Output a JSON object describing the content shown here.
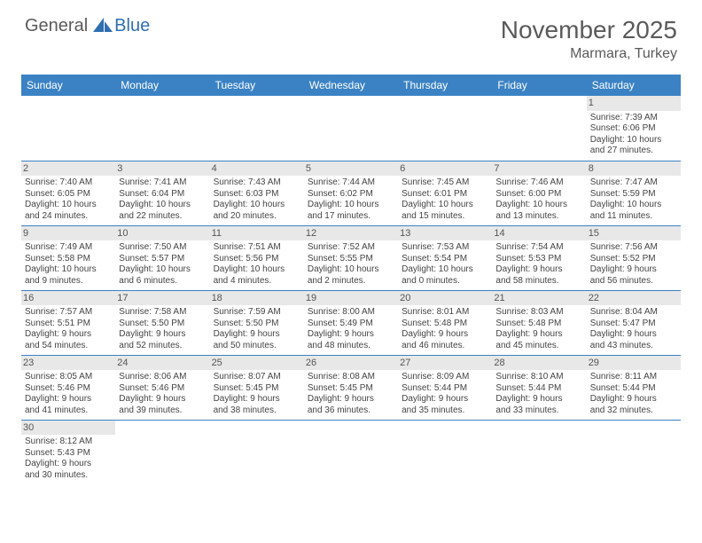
{
  "logo": {
    "general": "General",
    "blue": "Blue"
  },
  "title": "November 2025",
  "location": "Marmara, Turkey",
  "colors": {
    "header_bg": "#3b82c4",
    "header_text": "#ffffff",
    "daynum_bg": "#e8e8e8",
    "border": "#3b82c4",
    "text": "#444444",
    "title_text": "#5a5a5a",
    "logo_blue": "#2f6fb0"
  },
  "weekdays": [
    "Sunday",
    "Monday",
    "Tuesday",
    "Wednesday",
    "Thursday",
    "Friday",
    "Saturday"
  ],
  "weeks": [
    [
      null,
      null,
      null,
      null,
      null,
      null,
      {
        "n": "1",
        "sr": "Sunrise: 7:39 AM",
        "ss": "Sunset: 6:06 PM",
        "d1": "Daylight: 10 hours",
        "d2": "and 27 minutes."
      }
    ],
    [
      {
        "n": "2",
        "sr": "Sunrise: 7:40 AM",
        "ss": "Sunset: 6:05 PM",
        "d1": "Daylight: 10 hours",
        "d2": "and 24 minutes."
      },
      {
        "n": "3",
        "sr": "Sunrise: 7:41 AM",
        "ss": "Sunset: 6:04 PM",
        "d1": "Daylight: 10 hours",
        "d2": "and 22 minutes."
      },
      {
        "n": "4",
        "sr": "Sunrise: 7:43 AM",
        "ss": "Sunset: 6:03 PM",
        "d1": "Daylight: 10 hours",
        "d2": "and 20 minutes."
      },
      {
        "n": "5",
        "sr": "Sunrise: 7:44 AM",
        "ss": "Sunset: 6:02 PM",
        "d1": "Daylight: 10 hours",
        "d2": "and 17 minutes."
      },
      {
        "n": "6",
        "sr": "Sunrise: 7:45 AM",
        "ss": "Sunset: 6:01 PM",
        "d1": "Daylight: 10 hours",
        "d2": "and 15 minutes."
      },
      {
        "n": "7",
        "sr": "Sunrise: 7:46 AM",
        "ss": "Sunset: 6:00 PM",
        "d1": "Daylight: 10 hours",
        "d2": "and 13 minutes."
      },
      {
        "n": "8",
        "sr": "Sunrise: 7:47 AM",
        "ss": "Sunset: 5:59 PM",
        "d1": "Daylight: 10 hours",
        "d2": "and 11 minutes."
      }
    ],
    [
      {
        "n": "9",
        "sr": "Sunrise: 7:49 AM",
        "ss": "Sunset: 5:58 PM",
        "d1": "Daylight: 10 hours",
        "d2": "and 9 minutes."
      },
      {
        "n": "10",
        "sr": "Sunrise: 7:50 AM",
        "ss": "Sunset: 5:57 PM",
        "d1": "Daylight: 10 hours",
        "d2": "and 6 minutes."
      },
      {
        "n": "11",
        "sr": "Sunrise: 7:51 AM",
        "ss": "Sunset: 5:56 PM",
        "d1": "Daylight: 10 hours",
        "d2": "and 4 minutes."
      },
      {
        "n": "12",
        "sr": "Sunrise: 7:52 AM",
        "ss": "Sunset: 5:55 PM",
        "d1": "Daylight: 10 hours",
        "d2": "and 2 minutes."
      },
      {
        "n": "13",
        "sr": "Sunrise: 7:53 AM",
        "ss": "Sunset: 5:54 PM",
        "d1": "Daylight: 10 hours",
        "d2": "and 0 minutes."
      },
      {
        "n": "14",
        "sr": "Sunrise: 7:54 AM",
        "ss": "Sunset: 5:53 PM",
        "d1": "Daylight: 9 hours",
        "d2": "and 58 minutes."
      },
      {
        "n": "15",
        "sr": "Sunrise: 7:56 AM",
        "ss": "Sunset: 5:52 PM",
        "d1": "Daylight: 9 hours",
        "d2": "and 56 minutes."
      }
    ],
    [
      {
        "n": "16",
        "sr": "Sunrise: 7:57 AM",
        "ss": "Sunset: 5:51 PM",
        "d1": "Daylight: 9 hours",
        "d2": "and 54 minutes."
      },
      {
        "n": "17",
        "sr": "Sunrise: 7:58 AM",
        "ss": "Sunset: 5:50 PM",
        "d1": "Daylight: 9 hours",
        "d2": "and 52 minutes."
      },
      {
        "n": "18",
        "sr": "Sunrise: 7:59 AM",
        "ss": "Sunset: 5:50 PM",
        "d1": "Daylight: 9 hours",
        "d2": "and 50 minutes."
      },
      {
        "n": "19",
        "sr": "Sunrise: 8:00 AM",
        "ss": "Sunset: 5:49 PM",
        "d1": "Daylight: 9 hours",
        "d2": "and 48 minutes."
      },
      {
        "n": "20",
        "sr": "Sunrise: 8:01 AM",
        "ss": "Sunset: 5:48 PM",
        "d1": "Daylight: 9 hours",
        "d2": "and 46 minutes."
      },
      {
        "n": "21",
        "sr": "Sunrise: 8:03 AM",
        "ss": "Sunset: 5:48 PM",
        "d1": "Daylight: 9 hours",
        "d2": "and 45 minutes."
      },
      {
        "n": "22",
        "sr": "Sunrise: 8:04 AM",
        "ss": "Sunset: 5:47 PM",
        "d1": "Daylight: 9 hours",
        "d2": "and 43 minutes."
      }
    ],
    [
      {
        "n": "23",
        "sr": "Sunrise: 8:05 AM",
        "ss": "Sunset: 5:46 PM",
        "d1": "Daylight: 9 hours",
        "d2": "and 41 minutes."
      },
      {
        "n": "24",
        "sr": "Sunrise: 8:06 AM",
        "ss": "Sunset: 5:46 PM",
        "d1": "Daylight: 9 hours",
        "d2": "and 39 minutes."
      },
      {
        "n": "25",
        "sr": "Sunrise: 8:07 AM",
        "ss": "Sunset: 5:45 PM",
        "d1": "Daylight: 9 hours",
        "d2": "and 38 minutes."
      },
      {
        "n": "26",
        "sr": "Sunrise: 8:08 AM",
        "ss": "Sunset: 5:45 PM",
        "d1": "Daylight: 9 hours",
        "d2": "and 36 minutes."
      },
      {
        "n": "27",
        "sr": "Sunrise: 8:09 AM",
        "ss": "Sunset: 5:44 PM",
        "d1": "Daylight: 9 hours",
        "d2": "and 35 minutes."
      },
      {
        "n": "28",
        "sr": "Sunrise: 8:10 AM",
        "ss": "Sunset: 5:44 PM",
        "d1": "Daylight: 9 hours",
        "d2": "and 33 minutes."
      },
      {
        "n": "29",
        "sr": "Sunrise: 8:11 AM",
        "ss": "Sunset: 5:44 PM",
        "d1": "Daylight: 9 hours",
        "d2": "and 32 minutes."
      }
    ],
    [
      {
        "n": "30",
        "sr": "Sunrise: 8:12 AM",
        "ss": "Sunset: 5:43 PM",
        "d1": "Daylight: 9 hours",
        "d2": "and 30 minutes."
      },
      null,
      null,
      null,
      null,
      null,
      null
    ]
  ]
}
